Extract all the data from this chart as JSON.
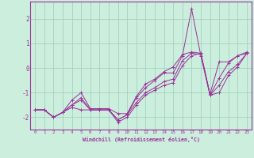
{
  "title": "",
  "xlabel": "Windchill (Refroidissement éolien,°C)",
  "bg_color": "#cceedd",
  "grid_color": "#99ccbb",
  "line_color": "#993399",
  "xlim": [
    -0.5,
    23.5
  ],
  "ylim": [
    -2.5,
    2.7
  ],
  "xticks": [
    0,
    1,
    2,
    3,
    4,
    5,
    6,
    7,
    8,
    9,
    10,
    11,
    12,
    13,
    14,
    15,
    16,
    17,
    18,
    19,
    20,
    21,
    22,
    23
  ],
  "yticks": [
    -2,
    -1,
    0,
    1,
    2
  ],
  "hours": [
    0,
    1,
    2,
    3,
    4,
    5,
    6,
    7,
    8,
    9,
    10,
    11,
    12,
    13,
    14,
    15,
    16,
    17,
    18,
    19,
    20,
    21,
    22,
    23
  ],
  "line1": [
    -1.7,
    -1.7,
    -2.0,
    -1.8,
    -1.5,
    -1.2,
    -1.7,
    -1.7,
    -1.7,
    -2.1,
    -1.9,
    -1.2,
    -0.8,
    -0.5,
    -0.2,
    -0.2,
    0.5,
    2.4,
    0.5,
    -1.1,
    -0.4,
    0.2,
    0.5,
    0.6
  ],
  "line2": [
    -1.7,
    -1.7,
    -2.0,
    -1.8,
    -1.5,
    -1.3,
    -1.7,
    -1.7,
    -1.7,
    -2.1,
    -1.9,
    -1.4,
    -1.0,
    -0.8,
    -0.55,
    -0.45,
    0.3,
    0.6,
    0.55,
    -1.1,
    -0.7,
    -0.15,
    0.15,
    0.6
  ],
  "line3": [
    -1.7,
    -1.7,
    -2.0,
    -1.8,
    -1.3,
    -1.0,
    -1.65,
    -1.65,
    -1.65,
    -1.85,
    -1.85,
    -1.15,
    -0.65,
    -0.45,
    -0.15,
    0.05,
    0.55,
    0.65,
    0.6,
    -1.05,
    0.25,
    0.25,
    0.5,
    0.65
  ],
  "line4": [
    -1.7,
    -1.7,
    -2.0,
    -1.8,
    -1.6,
    -1.7,
    -1.7,
    -1.7,
    -1.7,
    -2.2,
    -2.0,
    -1.5,
    -1.1,
    -0.9,
    -0.7,
    -0.6,
    0.1,
    0.5,
    0.6,
    -1.1,
    -1.0,
    -0.3,
    0.05,
    0.6
  ]
}
